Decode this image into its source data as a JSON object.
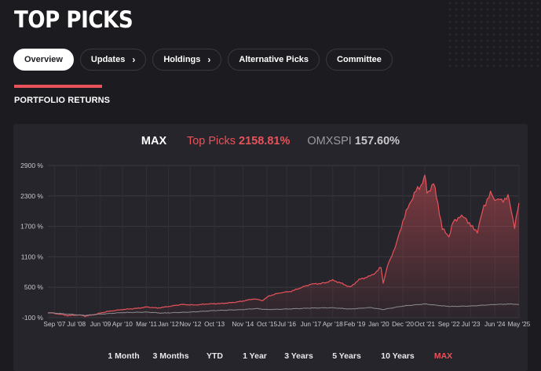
{
  "page": {
    "title": "TOP PICKS"
  },
  "nav": [
    {
      "label": "Overview",
      "active": true,
      "chevron": false
    },
    {
      "label": "Updates",
      "active": false,
      "chevron": true
    },
    {
      "label": "Holdings",
      "active": false,
      "chevron": true
    },
    {
      "label": "Alternative Picks",
      "active": false,
      "chevron": false
    },
    {
      "label": "Committee",
      "active": false,
      "chevron": false
    }
  ],
  "section": {
    "title": "PORTFOLIO RETURNS"
  },
  "summary": {
    "range": "MAX",
    "portfolio_name": "Top Picks",
    "portfolio_return": "2158.81%",
    "benchmark_name": "OMXSPI",
    "benchmark_return": "157.60%"
  },
  "time_ranges": [
    "1 Month",
    "3 Months",
    "YTD",
    "1 Year",
    "3 Years",
    "5 Years",
    "10 Years",
    "MAX"
  ],
  "selected_range": "MAX",
  "colors": {
    "accent": "#e8525a",
    "benchmark": "#8a8a90",
    "background": "#1c1b20",
    "card": "#26252b"
  },
  "chart_data": {
    "type": "line",
    "title": "",
    "xlabel": "",
    "ylabel": "",
    "ylim": [
      -100,
      2900
    ],
    "yticks": [
      -100,
      500,
      1100,
      1700,
      2300,
      2900
    ],
    "ytick_labels": [
      "-100 %",
      "500 %",
      "1100 %",
      "1700 %",
      "2300 %",
      "2900 %"
    ],
    "xlim": [
      "2007-06",
      "2025-05"
    ],
    "xtick_labels": [
      "Sep '07",
      "Jul '08",
      "Jun '09",
      "Apr '10",
      "Mar '11",
      "Jan '12",
      "Nov '12",
      "Oct '13",
      "Nov '14",
      "Oct '15",
      "Jul '16",
      "Jun '17",
      "Apr '18",
      "Feb '19",
      "Jan '20",
      "Dec '20",
      "Oct '21",
      "Sep '22",
      "Jul '23",
      "Jun '24",
      "May '25"
    ],
    "xtick_positions": [
      "2007-09",
      "2008-07",
      "2009-06",
      "2010-04",
      "2011-03",
      "2012-01",
      "2012-11",
      "2013-10",
      "2014-11",
      "2015-10",
      "2016-07",
      "2017-06",
      "2018-04",
      "2019-02",
      "2020-01",
      "2020-12",
      "2021-10",
      "2022-09",
      "2023-07",
      "2024-06",
      "2025-05"
    ],
    "grid": true,
    "series": [
      {
        "name": "Top Picks",
        "points": [
          [
            "2007-06",
            0
          ],
          [
            "2007-10",
            -20
          ],
          [
            "2008-03",
            -60
          ],
          [
            "2008-08",
            -45
          ],
          [
            "2008-11",
            -70
          ],
          [
            "2009-03",
            -40
          ],
          [
            "2009-09",
            20
          ],
          [
            "2010-04",
            60
          ],
          [
            "2010-10",
            80
          ],
          [
            "2011-03",
            110
          ],
          [
            "2011-08",
            90
          ],
          [
            "2012-01",
            120
          ],
          [
            "2012-07",
            160
          ],
          [
            "2013-01",
            150
          ],
          [
            "2013-07",
            170
          ],
          [
            "2014-01",
            180
          ],
          [
            "2014-07",
            200
          ],
          [
            "2014-11",
            230
          ],
          [
            "2015-04",
            270
          ],
          [
            "2015-08",
            240
          ],
          [
            "2015-11",
            330
          ],
          [
            "2016-04",
            390
          ],
          [
            "2016-09",
            420
          ],
          [
            "2017-02",
            500
          ],
          [
            "2017-06",
            560
          ],
          [
            "2017-12",
            580
          ],
          [
            "2018-04",
            640
          ],
          [
            "2018-09",
            560
          ],
          [
            "2018-12",
            500
          ],
          [
            "2019-04",
            650
          ],
          [
            "2019-09",
            720
          ],
          [
            "2019-12",
            800
          ],
          [
            "2020-02",
            900
          ],
          [
            "2020-03",
            580
          ],
          [
            "2020-05",
            920
          ],
          [
            "2020-09",
            1350
          ],
          [
            "2020-12",
            1800
          ],
          [
            "2021-03",
            2150
          ],
          [
            "2021-06",
            2400
          ],
          [
            "2021-09",
            2550
          ],
          [
            "2021-10",
            2720
          ],
          [
            "2021-11",
            2350
          ],
          [
            "2022-02",
            2550
          ],
          [
            "2022-04",
            2150
          ],
          [
            "2022-06",
            1650
          ],
          [
            "2022-09",
            1500
          ],
          [
            "2022-11",
            1780
          ],
          [
            "2023-02",
            1900
          ],
          [
            "2023-05",
            1850
          ],
          [
            "2023-07",
            1700
          ],
          [
            "2023-10",
            1600
          ],
          [
            "2024-01",
            2100
          ],
          [
            "2024-04",
            2350
          ],
          [
            "2024-06",
            2250
          ],
          [
            "2024-09",
            2200
          ],
          [
            "2024-12",
            2300
          ],
          [
            "2025-03",
            1700
          ],
          [
            "2025-05",
            2158.81
          ]
        ]
      },
      {
        "name": "OMXSPI",
        "points": [
          [
            "2007-06",
            0
          ],
          [
            "2008-03",
            -30
          ],
          [
            "2008-11",
            -55
          ],
          [
            "2009-06",
            -30
          ],
          [
            "2010-04",
            0
          ],
          [
            "2011-03",
            10
          ],
          [
            "2011-10",
            -10
          ],
          [
            "2012-11",
            10
          ],
          [
            "2013-10",
            40
          ],
          [
            "2014-11",
            60
          ],
          [
            "2015-05",
            80
          ],
          [
            "2015-10",
            60
          ],
          [
            "2016-07",
            70
          ],
          [
            "2017-06",
            90
          ],
          [
            "2018-04",
            95
          ],
          [
            "2018-12",
            70
          ],
          [
            "2019-09",
            100
          ],
          [
            "2020-03",
            60
          ],
          [
            "2020-12",
            130
          ],
          [
            "2021-10",
            170
          ],
          [
            "2022-09",
            120
          ],
          [
            "2023-07",
            130
          ],
          [
            "2024-06",
            160
          ],
          [
            "2025-02",
            170
          ],
          [
            "2025-05",
            157.6
          ]
        ]
      }
    ]
  }
}
